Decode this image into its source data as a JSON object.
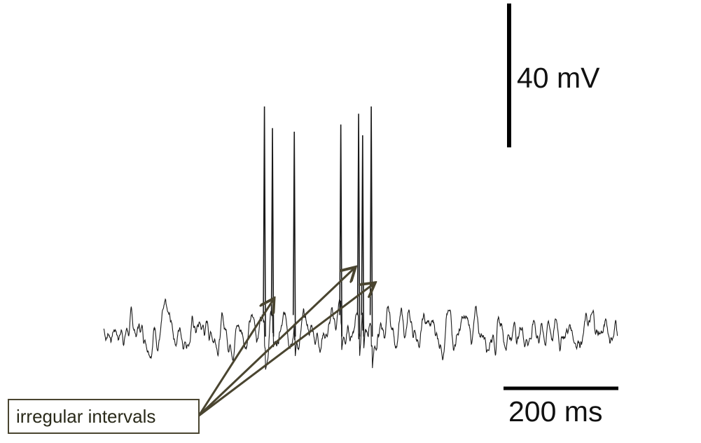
{
  "chart_data": {
    "type": "line",
    "title": "",
    "xlabel": "",
    "ylabel": "",
    "scale_bars": {
      "voltage": {
        "value": 40,
        "label": "40 mV"
      },
      "time": {
        "value": 200,
        "label": "200 ms"
      }
    },
    "series": [
      {
        "spike_times_ms": [
          280,
          294,
          332,
          413,
          444,
          451,
          466
        ],
        "spike_peaks_mv": [
          62,
          56,
          55,
          57,
          60,
          54,
          62
        ],
        "baseline_mv": 0
      }
    ],
    "annotation": {
      "text": "irregular intervals",
      "arrow_targets_ms": [
        295,
        436,
        470
      ]
    }
  },
  "colors": {
    "trace": "#1a1a1a",
    "scale_bar": "#000000",
    "annotation": "#4a4530"
  }
}
